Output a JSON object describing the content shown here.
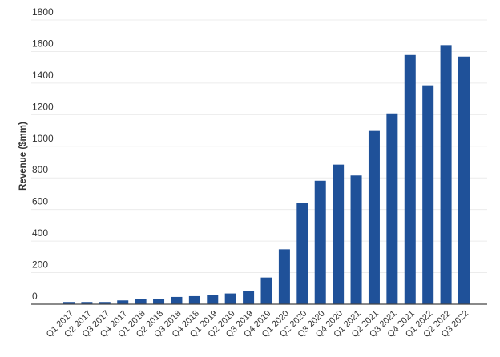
{
  "chart_data": {
    "type": "bar",
    "title": "",
    "xlabel": "",
    "ylabel": "Revenue ($mm)",
    "ylim": [
      0,
      1800
    ],
    "yticks": [
      0,
      200,
      400,
      600,
      800,
      1000,
      1200,
      1400,
      1600,
      1800
    ],
    "grid": true,
    "bar_color": "#1f5199",
    "categories": [
      "Q1 2017",
      "Q2 2017",
      "Q3 2017",
      "Q4 2017",
      "Q1 2018",
      "Q2 2018",
      "Q3 2018",
      "Q4 2018",
      "Q1 2019",
      "Q2 2019",
      "Q3 2019",
      "Q4 2019",
      "Q1 2020",
      "Q2 2020",
      "Q3 2020",
      "Q4 2020",
      "Q1 2021",
      "Q2 2021",
      "Q3 2021",
      "Q4 2021",
      "Q1 2022",
      "Q2 2022",
      "Q3 2022"
    ],
    "values": [
      14,
      14,
      14,
      24,
      32,
      32,
      46,
      51,
      59,
      68,
      85,
      169,
      348,
      640,
      782,
      884,
      815,
      1097,
      1208,
      1578,
      1386,
      1641,
      1568
    ]
  }
}
